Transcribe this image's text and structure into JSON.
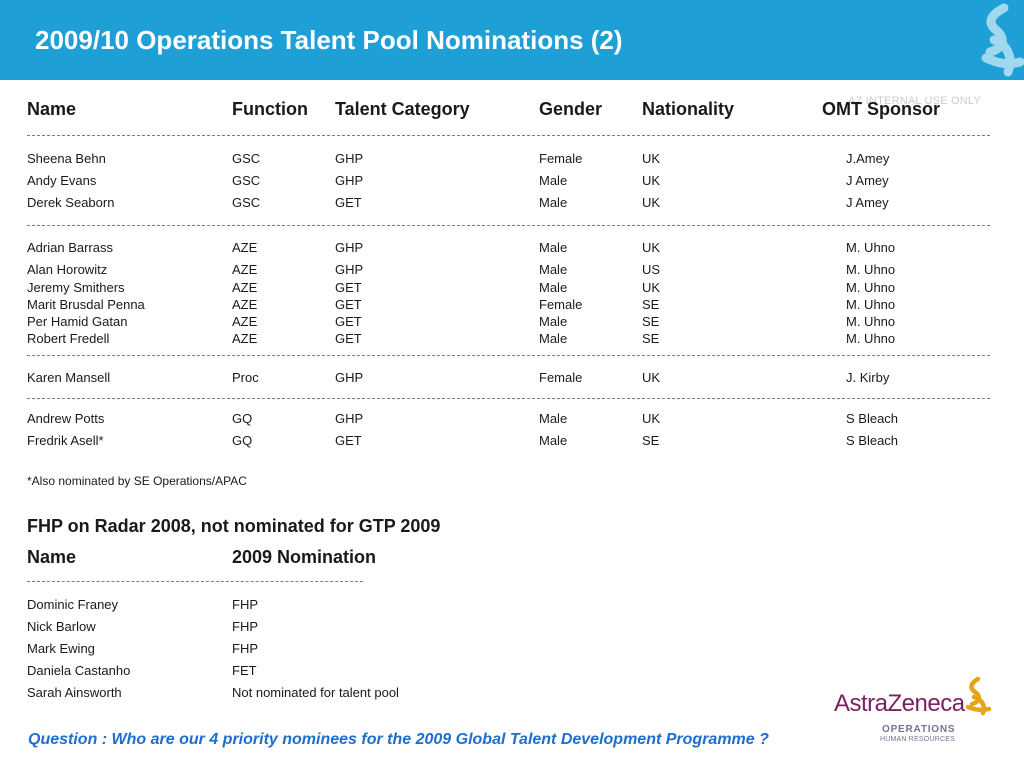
{
  "page": {
    "title": "2009/10 Operations Talent Pool Nominations (2)",
    "watermark": "AZ INTERNAL USE ONLY",
    "footnote": "*Also nominated by SE Operations/APAC",
    "question": "Question : Who are our 4 priority nominees for the 2009 Global Talent Development Programme ?"
  },
  "nominations": {
    "headers": {
      "name": "Name",
      "function": "Function",
      "category": "Talent Category",
      "gender": "Gender",
      "nationality": "Nationality",
      "sponsor": "OMT Sponsor"
    },
    "rows": [
      {
        "name": "Sheena Behn",
        "function": "GSC",
        "category": "GHP",
        "gender": "Female",
        "nationality": "UK",
        "sponsor": "J.Amey"
      },
      {
        "name": "Andy Evans",
        "function": "GSC",
        "category": "GHP",
        "gender": "Male",
        "nationality": "UK",
        "sponsor": "J Amey"
      },
      {
        "name": "Derek Seaborn",
        "function": "GSC",
        "category": "GET",
        "gender": "Male",
        "nationality": "UK",
        "sponsor": "J Amey"
      },
      {
        "name": "Adrian Barrass",
        "function": "AZE",
        "category": "GHP",
        "gender": "Male",
        "nationality": "UK",
        "sponsor": "M. Uhno"
      },
      {
        "name": "Alan Horowitz",
        "function": "AZE",
        "category": "GHP",
        "gender": "Male",
        "nationality": "US",
        "sponsor": "M. Uhno"
      },
      {
        "name": "Jeremy Smithers",
        "function": "AZE",
        "category": "GET",
        "gender": "Male",
        "nationality": "UK",
        "sponsor": "M. Uhno"
      },
      {
        "name": "Marit Brusdal Penna",
        "function": "AZE",
        "category": "GET",
        "gender": "Female",
        "nationality": "SE",
        "sponsor": "M. Uhno"
      },
      {
        "name": "Per Hamid Gatan",
        "function": "AZE",
        "category": "GET",
        "gender": "Male",
        "nationality": "SE",
        "sponsor": "M. Uhno"
      },
      {
        "name": "Robert Fredell",
        "function": "AZE",
        "category": "GET",
        "gender": "Male",
        "nationality": "SE",
        "sponsor": "M. Uhno"
      },
      {
        "name": "Karen Mansell",
        "function": "Proc",
        "category": "GHP",
        "gender": "Female",
        "nationality": "UK",
        "sponsor": "J. Kirby"
      },
      {
        "name": "Andrew Potts",
        "function": "GQ",
        "category": "GHP",
        "gender": "Male",
        "nationality": "UK",
        "sponsor": "S Bleach"
      },
      {
        "name": "Fredrik Asell*",
        "function": "GQ",
        "category": "GET",
        "gender": "Male",
        "nationality": "SE",
        "sponsor": "S Bleach"
      }
    ]
  },
  "radar": {
    "title": "FHP on Radar 2008, not nominated for GTP 2009",
    "headers": {
      "name": "Name",
      "nomination": "2009 Nomination"
    },
    "rows": [
      {
        "name": "Dominic Franey",
        "nomination": "FHP"
      },
      {
        "name": "Nick Barlow",
        "nomination": "FHP"
      },
      {
        "name": "Mark Ewing",
        "nomination": "FHP"
      },
      {
        "name": "Daniela Castanho",
        "nomination": "FET"
      },
      {
        "name": "Sarah Ainsworth",
        "nomination": "Not nominated for talent pool"
      }
    ]
  },
  "brand": {
    "company": "AstraZeneca",
    "division": "OPERATIONS",
    "department": "HUMAN RESOURCES",
    "logo_icon": "astrazeneca-swirl-icon",
    "colors": {
      "header_blue": "#1e9fd6",
      "question_blue": "#1d6ed0",
      "brand_purple": "#7a1f62",
      "brand_gold": "#e8a317"
    }
  }
}
